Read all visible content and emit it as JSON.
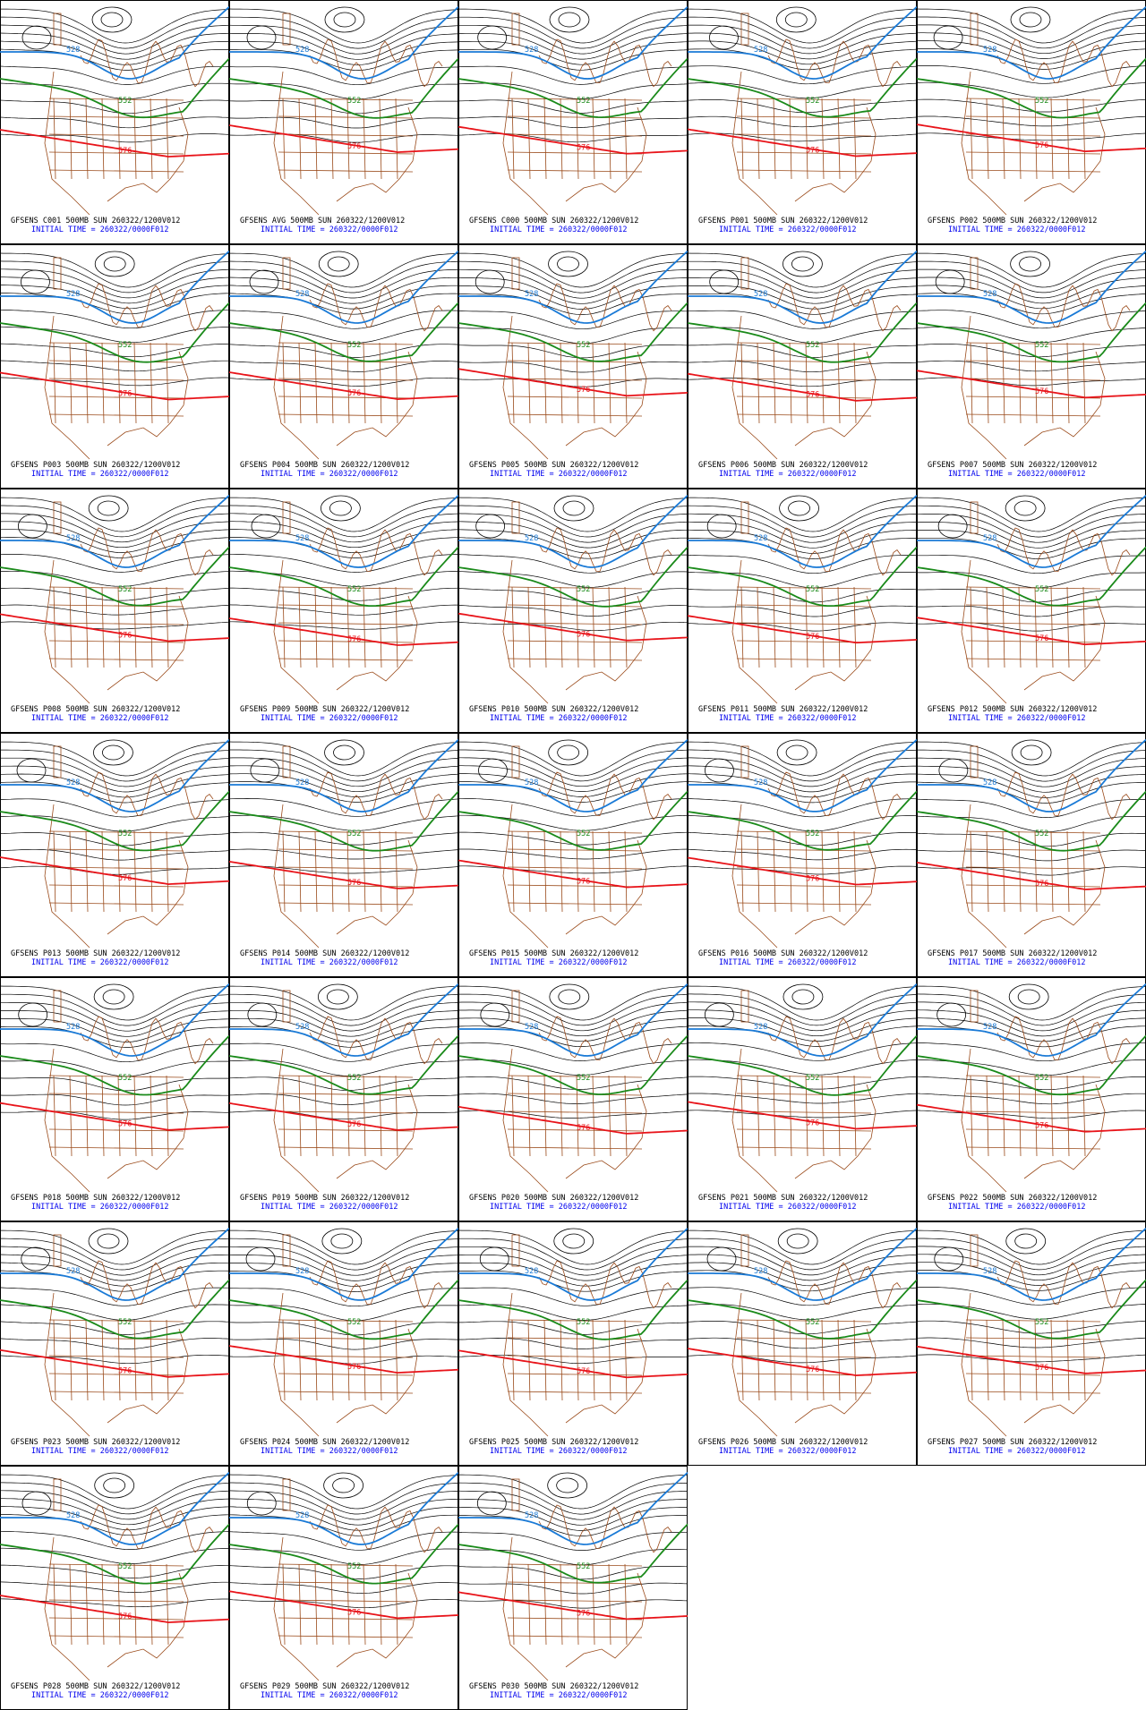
{
  "contour_labels": {
    "blue": "528",
    "green": "552",
    "red": "576"
  },
  "panels": [
    {
      "title": "GFSENS C001 500MB SUN 260322/1200V012",
      "init": "INITIAL TIME = 260322/0000F012"
    },
    {
      "title": "GFSENS AVG 500MB SUN 260322/1200V012",
      "init": "INITIAL TIME = 260322/0000F012"
    },
    {
      "title": "GFSENS C000 500MB SUN 260322/1200V012",
      "init": "INITIAL TIME = 260322/0000F012"
    },
    {
      "title": "GFSENS P001 500MB SUN 260322/1200V012",
      "init": "INITIAL TIME = 260322/0000F012"
    },
    {
      "title": "GFSENS P002 500MB SUN 260322/1200V012",
      "init": "INITIAL TIME = 260322/0000F012"
    },
    {
      "title": "GFSENS P003 500MB SUN 260322/1200V012",
      "init": "INITIAL TIME = 260322/0000F012"
    },
    {
      "title": "GFSENS P004 500MB SUN 260322/1200V012",
      "init": "INITIAL TIME = 260322/0000F012"
    },
    {
      "title": "GFSENS P005 500MB SUN 260322/1200V012",
      "init": "INITIAL TIME = 260322/0000F012"
    },
    {
      "title": "GFSENS P006 500MB SUN 260322/1200V012",
      "init": "INITIAL TIME = 260322/0000F012"
    },
    {
      "title": "GFSENS P007 500MB SUN 260322/1200V012",
      "init": "INITIAL TIME = 260322/0000F012"
    },
    {
      "title": "GFSENS P008 500MB SUN 260322/1200V012",
      "init": "INITIAL TIME = 260322/0000F012"
    },
    {
      "title": "GFSENS P009 500MB SUN 260322/1200V012",
      "init": "INITIAL TIME = 260322/0000F012"
    },
    {
      "title": "GFSENS P010 500MB SUN 260322/1200V012",
      "init": "INITIAL TIME = 260322/0000F012"
    },
    {
      "title": "GFSENS P011 500MB SUN 260322/1200V012",
      "init": "INITIAL TIME = 260322/0000F012"
    },
    {
      "title": "GFSENS P012 500MB SUN 260322/1200V012",
      "init": "INITIAL TIME = 260322/0000F012"
    },
    {
      "title": "GFSENS P013 500MB SUN 260322/1200V012",
      "init": "INITIAL TIME = 260322/0000F012"
    },
    {
      "title": "GFSENS P014 500MB SUN 260322/1200V012",
      "init": "INITIAL TIME = 260322/0000F012"
    },
    {
      "title": "GFSENS P015 500MB SUN 260322/1200V012",
      "init": "INITIAL TIME = 260322/0000F012"
    },
    {
      "title": "GFSENS P016 500MB SUN 260322/1200V012",
      "init": "INITIAL TIME = 260322/0000F012"
    },
    {
      "title": "GFSENS P017 500MB SUN 260322/1200V012",
      "init": "INITIAL TIME = 260322/0000F012"
    },
    {
      "title": "GFSENS P018 500MB SUN 260322/1200V012",
      "init": "INITIAL TIME = 260322/0000F012"
    },
    {
      "title": "GFSENS P019 500MB SUN 260322/1200V012",
      "init": "INITIAL TIME = 260322/0000F012"
    },
    {
      "title": "GFSENS P020 500MB SUN 260322/1200V012",
      "init": "INITIAL TIME = 260322/0000F012"
    },
    {
      "title": "GFSENS P021 500MB SUN 260322/1200V012",
      "init": "INITIAL TIME = 260322/0000F012"
    },
    {
      "title": "GFSENS P022 500MB SUN 260322/1200V012",
      "init": "INITIAL TIME = 260322/0000F012"
    },
    {
      "title": "GFSENS P023 500MB SUN 260322/1200V012",
      "init": "INITIAL TIME = 260322/0000F012"
    },
    {
      "title": "GFSENS P024 500MB SUN 260322/1200V012",
      "init": "INITIAL TIME = 260322/0000F012"
    },
    {
      "title": "GFSENS P025 500MB SUN 260322/1200V012",
      "init": "INITIAL TIME = 260322/0000F012"
    },
    {
      "title": "GFSENS P026 500MB SUN 260322/1200V012",
      "init": "INITIAL TIME = 260322/0000F012"
    },
    {
      "title": "GFSENS P027 500MB SUN 260322/1200V012",
      "init": "INITIAL TIME = 260322/0000F012"
    },
    {
      "title": "GFSENS P028 500MB SUN 260322/1200V012",
      "init": "INITIAL TIME = 260322/0000F012"
    },
    {
      "title": "GFSENS P029 500MB SUN 260322/1200V012",
      "init": "INITIAL TIME = 260322/0000F012"
    },
    {
      "title": "GFSENS P030 500MB SUN 260322/1200V012",
      "init": "INITIAL TIME = 260322/0000F012"
    }
  ]
}
